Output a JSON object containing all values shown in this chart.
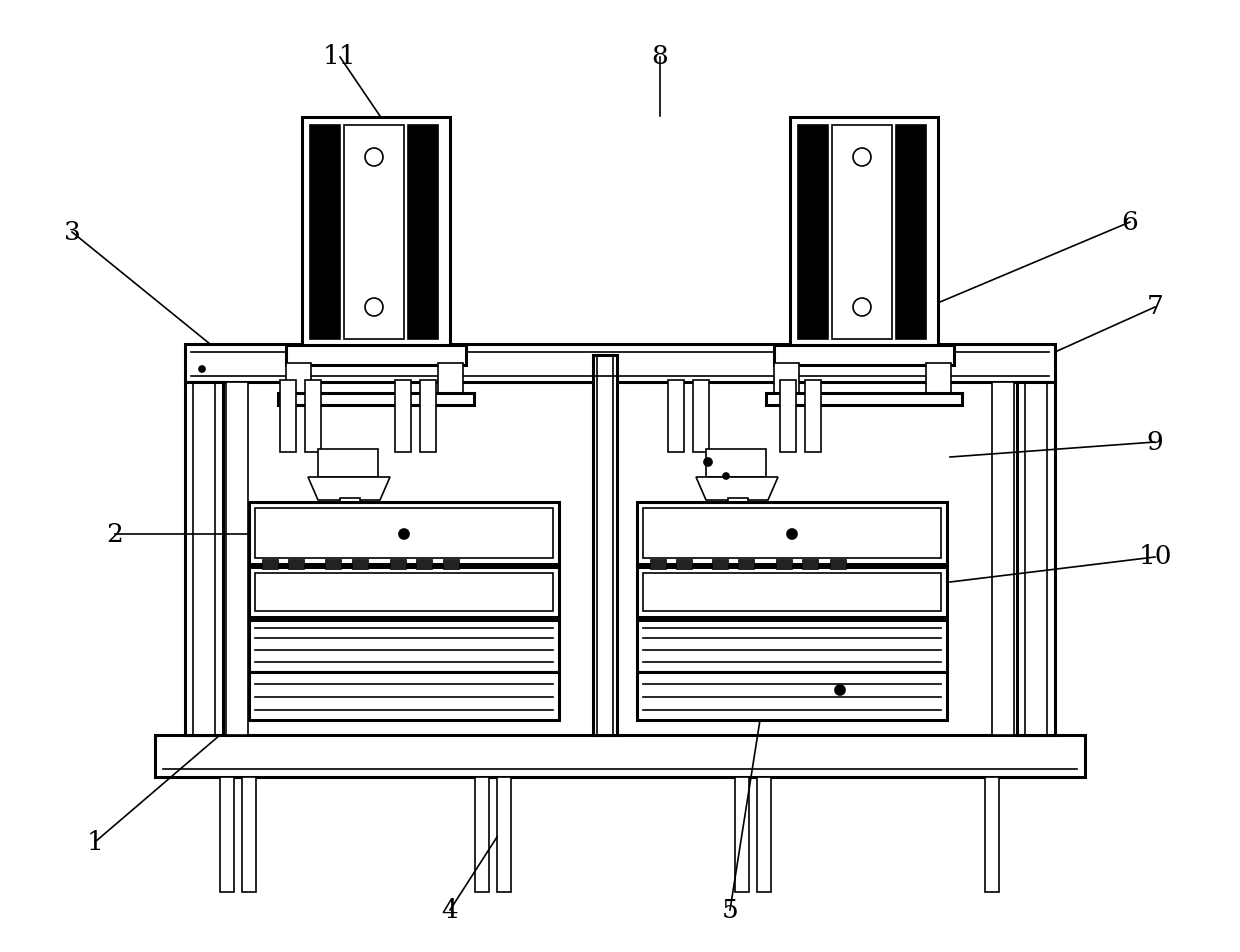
{
  "bg_color": "#ffffff",
  "line_color": "#000000",
  "fig_width": 12.4,
  "fig_height": 9.52,
  "label_fontsize": 19
}
